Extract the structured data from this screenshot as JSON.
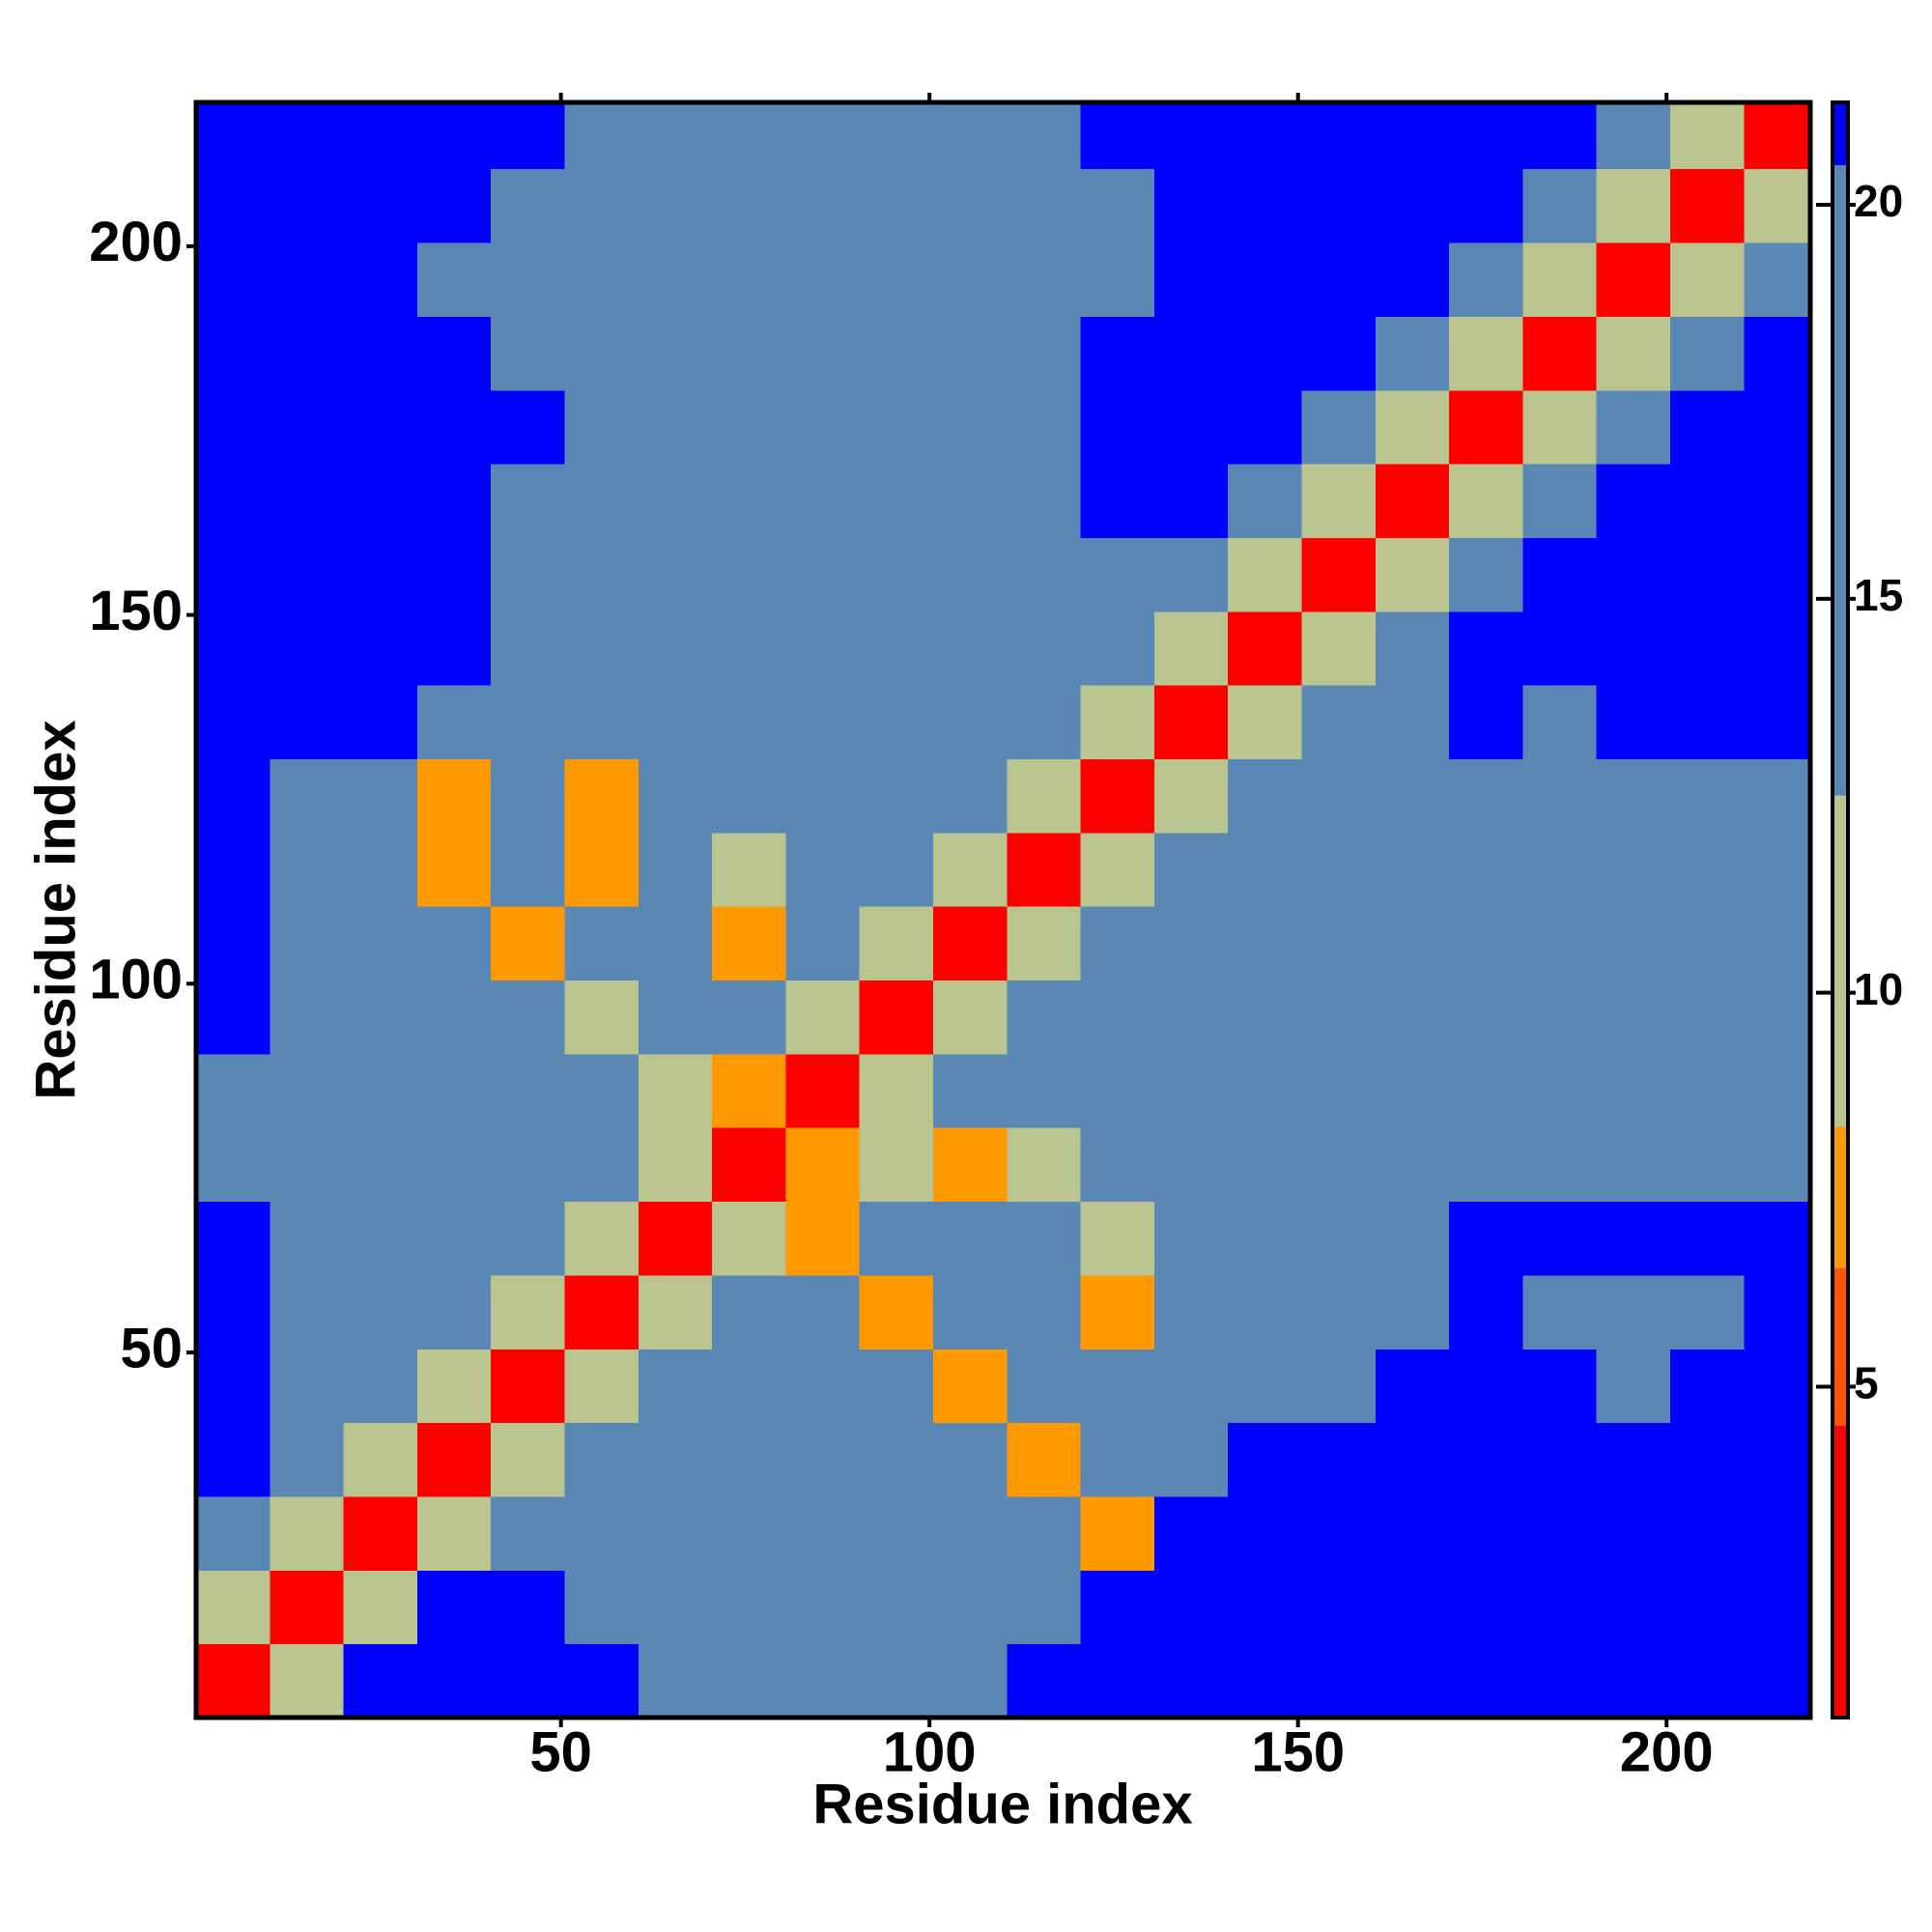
{
  "chart_data": {
    "type": "heatmap",
    "xlabel": "Residue index",
    "ylabel": "Residue index",
    "xbins": [
      0.5,
      10.5,
      20.5,
      30.5,
      40.5,
      50.5,
      60.5,
      70.5,
      80.5,
      90.5,
      100.5,
      110.5,
      120.5,
      130.5,
      140.5,
      150.5,
      160.5,
      170.5,
      180.5,
      190.5,
      200.5,
      210.5,
      219.5
    ],
    "ybins": [
      0.5,
      10.5,
      20.5,
      30.5,
      40.5,
      50.5,
      60.5,
      70.5,
      80.5,
      90.5,
      100.5,
      110.5,
      120.5,
      130.5,
      140.5,
      150.5,
      160.5,
      170.5,
      180.5,
      190.5,
      200.5,
      210.5,
      219.5
    ],
    "xlim": [
      0.5,
      219.5
    ],
    "ylim": [
      0.5,
      219.5
    ],
    "xticks": [
      50,
      100,
      150,
      200
    ],
    "yticks": [
      50,
      100,
      150,
      200
    ],
    "zlim": [
      0.8,
      21.3
    ],
    "zticks": [
      5,
      10,
      15,
      20
    ],
    "colorscale": [
      [
        0.8,
        "#ff0000"
      ],
      [
        4.5,
        "#ff5500"
      ],
      [
        6.5,
        "#ff9900"
      ],
      [
        8.3,
        "#b9c48e"
      ],
      [
        12.5,
        "#5b87b5"
      ],
      [
        20.5,
        "#0000ff"
      ]
    ],
    "values": [
      [
        3,
        12,
        21,
        21,
        21,
        21,
        19,
        16,
        16,
        16,
        19,
        21,
        21,
        21,
        21,
        21,
        21,
        21,
        21,
        21,
        21,
        21
      ],
      [
        12,
        3,
        11,
        21,
        21,
        19,
        16,
        16,
        16,
        16,
        17,
        20,
        21,
        21,
        21,
        21,
        21,
        21,
        21,
        21,
        21,
        21
      ],
      [
        18,
        11,
        3,
        12,
        16,
        16,
        16,
        15,
        16,
        16,
        16,
        17,
        8,
        21,
        21,
        21,
        21,
        21,
        21,
        21,
        21,
        21
      ],
      [
        21,
        17,
        12,
        3,
        10,
        16,
        14,
        16,
        17,
        16,
        16,
        8,
        14,
        19,
        21,
        21,
        21,
        21,
        21,
        21,
        21,
        21
      ],
      [
        21,
        17,
        14,
        11,
        3,
        12,
        15,
        17,
        14,
        14,
        8,
        14,
        16,
        17,
        19,
        20,
        21,
        21,
        21,
        19,
        21,
        21
      ],
      [
        21,
        17,
        15,
        16,
        11,
        3,
        12,
        16,
        14,
        8,
        16,
        16,
        8,
        18,
        19,
        19,
        20,
        21,
        17,
        16,
        17,
        21
      ],
      [
        21,
        17,
        16,
        13,
        15,
        11,
        3,
        12,
        8,
        15,
        16,
        15,
        12,
        17,
        18,
        17,
        19,
        21,
        21,
        21,
        21,
        21
      ],
      [
        19,
        16,
        15,
        14,
        15,
        14,
        11,
        3,
        7,
        12,
        8,
        10,
        16,
        16,
        17,
        16,
        16,
        18,
        17,
        17,
        18,
        19
      ],
      [
        18,
        16,
        16,
        14,
        13,
        16,
        12,
        7,
        3,
        12,
        13,
        15,
        16,
        17,
        16,
        17,
        16,
        16,
        17,
        17,
        17,
        18
      ],
      [
        21,
        17,
        15,
        13,
        14,
        9,
        16,
        14,
        12,
        3,
        12,
        14,
        15,
        17,
        18,
        17,
        18,
        17,
        16,
        16,
        17,
        18
      ],
      [
        21,
        20,
        16,
        15,
        8,
        16,
        15,
        8,
        14,
        12,
        3,
        12,
        15,
        16,
        17,
        16,
        17,
        17,
        16,
        17,
        17,
        18
      ],
      [
        21,
        19,
        16,
        8,
        14,
        8,
        15,
        12,
        15,
        15,
        12,
        3,
        12,
        16,
        17,
        17,
        16,
        16,
        17,
        16,
        16,
        17
      ],
      [
        21,
        19,
        16,
        8,
        15,
        8,
        15,
        14,
        16,
        15,
        14,
        12,
        3,
        12,
        16,
        17,
        17,
        17,
        16,
        16,
        17,
        17
      ],
      [
        21,
        21,
        21,
        19,
        17,
        16,
        16,
        16,
        16,
        16,
        17,
        17,
        12,
        3,
        10,
        18,
        20,
        21,
        20,
        21,
        21,
        21
      ],
      [
        21,
        21,
        21,
        21,
        19,
        17,
        18,
        18,
        18,
        19,
        20,
        18,
        16,
        10,
        3,
        11,
        17,
        21,
        21,
        21,
        21,
        21
      ],
      [
        21,
        21,
        21,
        21,
        20,
        18,
        17,
        18,
        19,
        20,
        20,
        19,
        19,
        16,
        11,
        3,
        11,
        17,
        21,
        21,
        21,
        21
      ],
      [
        21,
        21,
        21,
        21,
        20,
        19,
        17,
        17,
        19,
        19,
        20,
        19,
        21,
        21,
        16,
        11,
        3,
        11,
        17,
        21,
        21,
        21
      ],
      [
        21,
        21,
        21,
        21,
        21,
        19,
        17,
        17,
        18,
        18,
        19,
        19,
        21,
        21,
        21,
        16,
        11,
        3,
        11,
        17,
        21,
        21
      ],
      [
        21,
        21,
        21,
        21,
        20,
        19,
        17,
        18,
        18,
        19,
        20,
        20,
        21,
        21,
        21,
        21,
        16,
        11,
        3,
        11,
        17,
        21
      ],
      [
        21,
        21,
        21,
        20,
        19,
        17,
        17,
        17,
        18,
        18,
        19,
        20,
        20,
        21,
        21,
        21,
        21,
        16,
        11,
        3,
        11,
        17
      ],
      [
        21,
        21,
        21,
        21,
        20,
        19,
        17,
        17,
        17,
        17,
        18,
        19,
        20,
        21,
        21,
        21,
        21,
        21,
        16,
        11,
        3,
        11
      ],
      [
        21,
        21,
        21,
        21,
        21,
        20,
        18,
        17,
        18,
        18,
        19,
        20,
        21,
        21,
        21,
        21,
        21,
        21,
        21,
        16,
        11,
        3
      ]
    ]
  }
}
